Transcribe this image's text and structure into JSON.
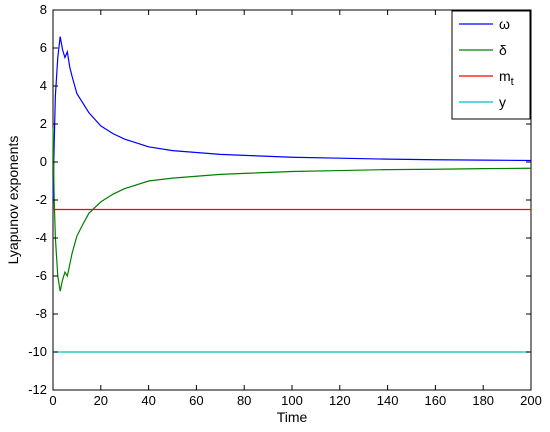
{
  "chart_data": {
    "type": "line",
    "title": "",
    "xlabel": "Time",
    "ylabel": "Lyapunov exponents",
    "xlim": [
      0,
      200
    ],
    "ylim": [
      -12,
      8
    ],
    "xticks": [
      0,
      20,
      40,
      60,
      80,
      100,
      120,
      140,
      160,
      180,
      200
    ],
    "yticks": [
      -12,
      -10,
      -8,
      -6,
      -4,
      -2,
      0,
      2,
      4,
      6,
      8
    ],
    "grid": false,
    "legend_position": "top-right",
    "series": [
      {
        "name": "ω",
        "color": "#0000ff",
        "x": [
          0,
          0.5,
          1,
          2,
          3,
          4,
          5,
          6,
          7,
          8,
          10,
          12,
          15,
          20,
          25,
          30,
          40,
          50,
          60,
          70,
          80,
          100,
          120,
          140,
          160,
          180,
          200
        ],
        "y": [
          -2.0,
          1.0,
          3.5,
          5.5,
          6.6,
          5.9,
          5.5,
          5.8,
          5.0,
          4.5,
          3.6,
          3.2,
          2.6,
          1.9,
          1.5,
          1.2,
          0.8,
          0.6,
          0.5,
          0.4,
          0.35,
          0.25,
          0.2,
          0.15,
          0.12,
          0.1,
          0.08
        ]
      },
      {
        "name": "δ",
        "color": "#008000",
        "x": [
          0,
          0.5,
          1,
          2,
          3,
          4,
          5,
          6,
          7,
          8,
          10,
          12,
          15,
          20,
          25,
          30,
          40,
          50,
          60,
          70,
          80,
          100,
          120,
          140,
          160,
          180,
          200
        ],
        "y": [
          1.8,
          -2.0,
          -4.0,
          -6.0,
          -6.8,
          -6.2,
          -5.8,
          -6.0,
          -5.4,
          -4.8,
          -3.9,
          -3.4,
          -2.7,
          -2.1,
          -1.7,
          -1.4,
          -1.0,
          -0.85,
          -0.75,
          -0.65,
          -0.6,
          -0.5,
          -0.45,
          -0.4,
          -0.38,
          -0.35,
          -0.33
        ]
      },
      {
        "name": "m",
        "name_sub": "t",
        "color": "#ff0000",
        "x": [
          0,
          200
        ],
        "y": [
          -2.5,
          -2.5
        ]
      },
      {
        "name": "y",
        "color": "#00bfbf",
        "x": [
          0,
          200
        ],
        "y": [
          -10,
          -10
        ]
      }
    ]
  }
}
